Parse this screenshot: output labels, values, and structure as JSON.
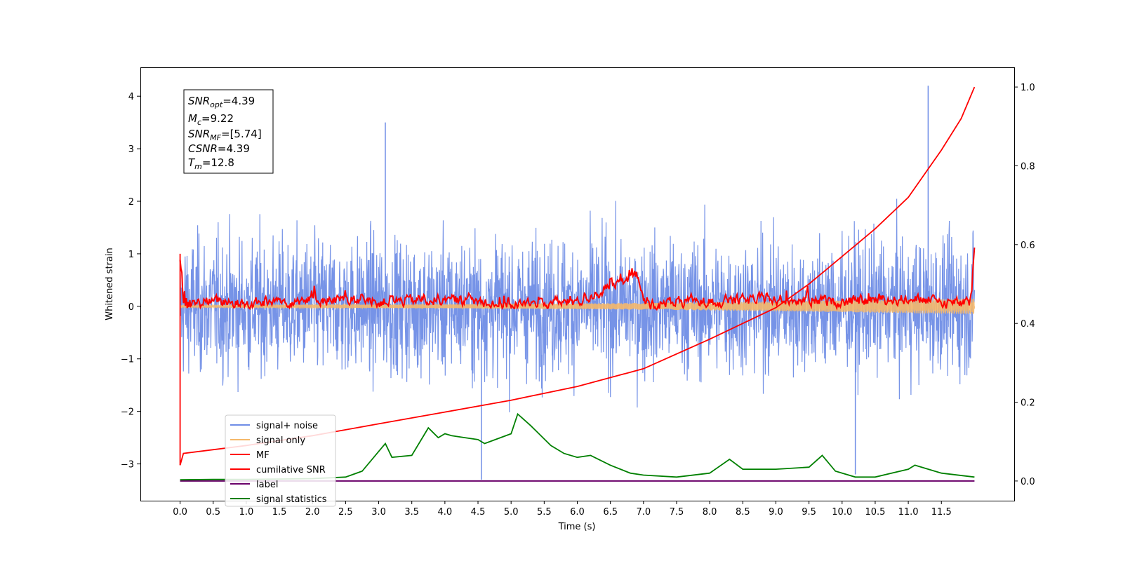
{
  "chart_data": {
    "type": "line",
    "title": "",
    "xlabel": "Time (s)",
    "ylabel": "Whitened strain",
    "xlim": [
      -0.6,
      12.6
    ],
    "ylim": [
      -3.7,
      4.55
    ],
    "y2lim": [
      -0.05,
      1.05
    ],
    "xticks": [
      "0.0",
      "0.5",
      "1.0",
      "1.5",
      "2.0",
      "2.5",
      "3.0",
      "3.5",
      "4.0",
      "4.5",
      "5.0",
      "5.5",
      "6.0",
      "6.5",
      "7.0",
      "7.5",
      "8.0",
      "8.5",
      "9.0",
      "9.5",
      "10.0",
      "10.5",
      "11.0",
      "11.5"
    ],
    "yticks": [
      "−3",
      "−2",
      "−1",
      "0",
      "1",
      "2",
      "3",
      "4"
    ],
    "y2ticks": [
      "0.0",
      "0.2",
      "0.4",
      "0.6",
      "0.8",
      "1.0"
    ],
    "grid": false,
    "legend_position": "lower-left",
    "series": [
      {
        "name": "signal+ noise",
        "axis": "left",
        "color": "#6f8de6",
        "description_points": [
          [
            0.0,
            0.2
          ],
          [
            1.0,
            -0.1
          ],
          [
            2.0,
            0.1
          ],
          [
            3.1,
            3.5
          ],
          [
            4.55,
            -3.3
          ],
          [
            6.0,
            0.0
          ],
          [
            8.0,
            0.1
          ],
          [
            10.2,
            -3.2
          ],
          [
            11.3,
            4.2
          ],
          [
            12.0,
            0.0
          ]
        ],
        "noise_band": [
          -2.2,
          2.2
        ]
      },
      {
        "name": "signal only",
        "axis": "left",
        "color": "#f5b86a",
        "amplitude_start": 0.02,
        "amplitude_end": 0.15
      },
      {
        "name": "MF",
        "axis": "left",
        "color": "#ff0000",
        "x": [
          0.0,
          0.02,
          0.05,
          0.1,
          0.5,
          1.0,
          2.0,
          3.0,
          4.0,
          5.0,
          6.0,
          6.9,
          7.0,
          8.0,
          9.0,
          10.0,
          11.0,
          11.9,
          11.95,
          12.0
        ],
        "y": [
          1.0,
          0.6,
          0.2,
          0.0,
          0.05,
          0.0,
          0.1,
          0.05,
          0.1,
          0.0,
          0.05,
          0.55,
          0.0,
          0.05,
          0.1,
          0.05,
          0.1,
          0.0,
          0.3,
          0.95
        ]
      },
      {
        "name": "cumilative SNR",
        "axis": "right",
        "color": "#ff0000",
        "x": [
          0.0,
          0.05,
          1.0,
          2.0,
          3.0,
          4.0,
          5.0,
          6.0,
          7.0,
          8.0,
          8.5,
          9.0,
          9.5,
          10.0,
          10.5,
          11.0,
          11.5,
          11.8,
          12.0
        ],
        "y": [
          0.04,
          0.07,
          0.09,
          0.115,
          0.145,
          0.175,
          0.205,
          0.24,
          0.285,
          0.36,
          0.4,
          0.44,
          0.5,
          0.57,
          0.64,
          0.72,
          0.84,
          0.92,
          1.0
        ]
      },
      {
        "name": "label",
        "axis": "right",
        "color": "#6a006a",
        "x": [
          0.0,
          12.0
        ],
        "y": [
          0.0,
          0.0
        ]
      },
      {
        "name": "signal statistics",
        "axis": "right",
        "color": "#008000",
        "x": [
          0.0,
          0.5,
          1.0,
          1.5,
          2.0,
          2.5,
          2.75,
          3.0,
          3.1,
          3.2,
          3.5,
          3.75,
          3.9,
          4.0,
          4.1,
          4.3,
          4.5,
          4.6,
          5.0,
          5.1,
          5.2,
          5.3,
          5.6,
          5.8,
          6.0,
          6.2,
          6.5,
          6.8,
          7.0,
          7.5,
          8.0,
          8.3,
          8.5,
          9.0,
          9.5,
          9.7,
          9.9,
          10.2,
          10.5,
          11.0,
          11.1,
          11.5,
          12.0
        ],
        "y": [
          0.003,
          0.004,
          0.004,
          0.005,
          0.006,
          0.01,
          0.025,
          0.075,
          0.095,
          0.06,
          0.065,
          0.135,
          0.11,
          0.12,
          0.115,
          0.11,
          0.105,
          0.095,
          0.12,
          0.17,
          0.155,
          0.14,
          0.09,
          0.07,
          0.06,
          0.065,
          0.04,
          0.02,
          0.015,
          0.01,
          0.02,
          0.055,
          0.03,
          0.03,
          0.035,
          0.065,
          0.025,
          0.01,
          0.01,
          0.03,
          0.04,
          0.02,
          0.01
        ]
      }
    ],
    "annotation": {
      "snr_opt": "=4.39",
      "mc": "=9.22",
      "snr_mf": "=[5.74]",
      "csnr": "=4.39",
      "tm": "=12.8"
    }
  }
}
